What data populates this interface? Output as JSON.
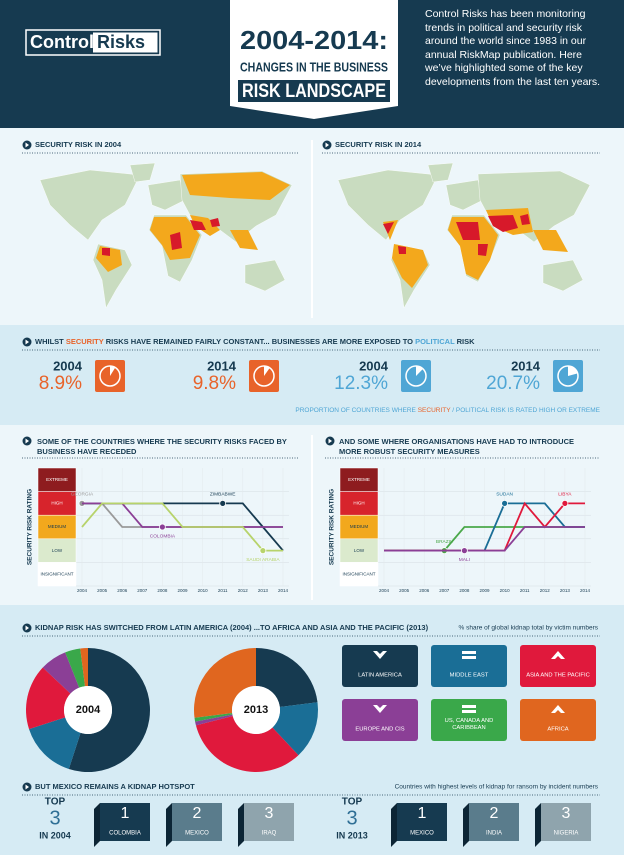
{
  "header": {
    "logo": [
      "Control",
      "Risks"
    ],
    "title": [
      "2004-2014:",
      "CHANGES IN THE BUSINESS",
      "RISK LANDSCAPE"
    ],
    "intro": "Control Risks has been monitoring trends in political and security risk around the world since 1983 in our annual RiskMap publication. Here we’ve highlighted some of the key developments from the last ten years."
  },
  "maps": [
    {
      "title": "SECURITY RISK IN 2004"
    },
    {
      "title": "SECURITY RISK IN 2014"
    }
  ],
  "exposure": {
    "heading": [
      "WHILST ",
      "SECURITY",
      " RISKS HAVE REMAINED FAIRLY CONSTANT... BUSINESSES ARE MORE EXPOSED TO ",
      "POLITICAL",
      " RISK"
    ],
    "stats": [
      {
        "year": "2004",
        "value": 8.9,
        "label": "8.9%",
        "color": "#e8632a"
      },
      {
        "year": "2014",
        "value": 9.8,
        "label": "9.8%",
        "color": "#e8632a"
      },
      {
        "year": "2004",
        "value": 12.3,
        "label": "12.3%",
        "color": "#4fa6d5"
      },
      {
        "year": "2014",
        "value": 20.7,
        "label": "20.7%",
        "color": "#4fa6d5"
      }
    ],
    "note": [
      "PROPORTION OF COUNTRIES WHERE ",
      "SECURITY",
      " / ",
      "POLITICAL",
      " RISK IS RATED HIGH OR EXTREME"
    ]
  },
  "chart_data": [
    {
      "type": "line",
      "title": "SOME OF THE COUNTRIES WHERE THE SECURITY RISKS FACED BY BUSINESS HAVE RECEDED",
      "y_label": "SECURITY RISK RATING",
      "categories": [
        "2004",
        "2005",
        "2006",
        "2007",
        "2008",
        "2009",
        "2010",
        "2011",
        "2012",
        "2013",
        "2014"
      ],
      "ylim": [
        -0.5,
        4.5
      ],
      "yticks": [
        {
          "value": 4,
          "label": "EXTREME"
        },
        {
          "value": 3,
          "label": "HIGH"
        },
        {
          "value": 2,
          "label": "MEDIUM"
        },
        {
          "value": 1,
          "label": "LOW"
        },
        {
          "value": 0,
          "label": "INSIGNIFICANT"
        }
      ],
      "band_colors": [
        "#8e1c1f",
        "#d7242c",
        "#f2a81d",
        "#dbeacd",
        "#ffffff"
      ],
      "series": [
        {
          "name": "GEORGIA",
          "color": "#9a9a9a",
          "values": [
            3,
            3,
            2,
            2,
            2,
            2,
            2,
            2,
            2,
            2,
            2
          ]
        },
        {
          "name": "ZIMBABWE",
          "color": "#163a50",
          "values": [
            3,
            3,
            3,
            3,
            3,
            3,
            3,
            3,
            3,
            2,
            1
          ]
        },
        {
          "name": "COLOMBIA",
          "color": "#8b3f96",
          "values": [
            3,
            3,
            3,
            2,
            2,
            2,
            2,
            2,
            2,
            2,
            2
          ]
        },
        {
          "name": "SAUDI ARABIA",
          "color": "#b7d36b",
          "values": [
            2,
            3,
            3,
            3,
            3,
            2,
            2,
            2,
            2,
            1,
            1
          ]
        }
      ]
    },
    {
      "type": "line",
      "title": "AND SOME WHERE ORGANISATIONS HAVE HAD TO INTRODUCE MORE ROBUST SECURITY MEASURES",
      "y_label": "SECURITY RISK RATING",
      "categories": [
        "2004",
        "2005",
        "2006",
        "2007",
        "2008",
        "2009",
        "2010",
        "2011",
        "2012",
        "2013",
        "2014"
      ],
      "ylim": [
        -0.5,
        4.5
      ],
      "yticks": [
        {
          "value": 4,
          "label": "EXTREME"
        },
        {
          "value": 3,
          "label": "HIGH"
        },
        {
          "value": 2,
          "label": "MEDIUM"
        },
        {
          "value": 1,
          "label": "LOW"
        },
        {
          "value": 0,
          "label": "INSIGNIFICANT"
        }
      ],
      "band_colors": [
        "#8e1c1f",
        "#d7242c",
        "#f2a81d",
        "#dbeacd",
        "#ffffff"
      ],
      "series": [
        {
          "name": "BRAZIL",
          "color": "#4aa84a",
          "values": [
            1,
            1,
            1,
            1,
            2,
            2,
            2,
            2,
            2,
            2,
            2
          ]
        },
        {
          "name": "SUDAN",
          "color": "#1a6e96",
          "values": [
            1,
            1,
            1,
            1,
            1,
            1,
            3,
            3,
            3,
            2,
            2
          ]
        },
        {
          "name": "LIBYA",
          "color": "#e0193c",
          "values": [
            1,
            1,
            1,
            1,
            1,
            1,
            1,
            3,
            2,
            3,
            3
          ]
        },
        {
          "name": "MALI",
          "color": "#8b3f96",
          "values": [
            1,
            1,
            1,
            1,
            1,
            1,
            1,
            2,
            2,
            2,
            2
          ]
        }
      ]
    },
    {
      "type": "donut",
      "title": "KIDNAP RISK HAS SWITCHED FROM LATIN AMERICA (2004) ...TO AFRICA AND ASIA AND THE PACIFIC (2013)",
      "note": "% share of global kidnap total by victim numbers",
      "categories": [
        "LATIN AMERICA",
        "MIDDLE EAST",
        "ASIA AND THE PACIFIC",
        "EUROPE AND CIS",
        "US, CANADA AND CARIBBEAN",
        "AFRICA"
      ],
      "colors": [
        "#163a50",
        "#1a6e96",
        "#e0193c",
        "#8b3f96",
        "#3aa84a",
        "#e0661f"
      ],
      "series": [
        {
          "name": "2004",
          "values": [
            55,
            15,
            17,
            7,
            4,
            2
          ]
        },
        {
          "name": "2013",
          "values": [
            23,
            15,
            33,
            1,
            1,
            27
          ]
        }
      ]
    }
  ],
  "top3": {
    "heading": "BUT MEXICO REMAINS A KIDNAP HOTSPOT",
    "note": "Countries with highest levels of kidnap for ransom by incident numbers",
    "lists": [
      {
        "top": "TOP",
        "count": 3,
        "year": "IN 2004",
        "entries": [
          {
            "rank": 1,
            "country": "COLOMBIA"
          },
          {
            "rank": 2,
            "country": "MEXICO"
          },
          {
            "rank": 3,
            "country": "IRAQ"
          }
        ]
      },
      {
        "top": "TOP",
        "count": 3,
        "year": "IN 2013",
        "entries": [
          {
            "rank": 1,
            "country": "MEXICO"
          },
          {
            "rank": 2,
            "country": "INDIA"
          },
          {
            "rank": 3,
            "country": "NIGERIA"
          }
        ]
      }
    ]
  }
}
